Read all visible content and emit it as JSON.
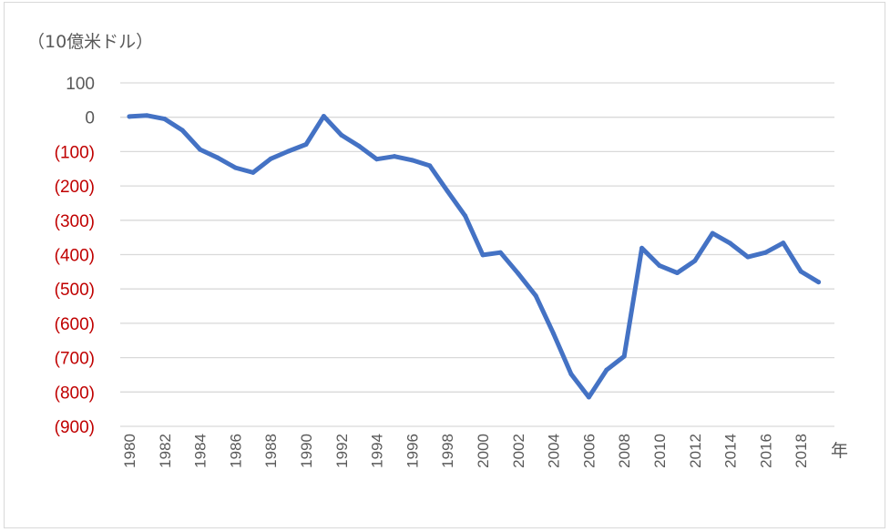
{
  "chart_data": {
    "type": "line",
    "title": "",
    "ylabel": "（10億米ドル）",
    "xlabel": "年",
    "ylim": [
      -900,
      100
    ],
    "yticks": [
      100,
      0,
      -100,
      -200,
      -300,
      -400,
      -500,
      -600,
      -700,
      -800,
      -900
    ],
    "ytick_labels": [
      "100",
      "0",
      "(100)",
      "(200)",
      "(300)",
      "(400)",
      "(500)",
      "(600)",
      "(700)",
      "(800)",
      "(900)"
    ],
    "xtick_labels": [
      "1980",
      "1982",
      "1984",
      "1986",
      "1988",
      "1990",
      "1992",
      "1994",
      "1996",
      "1998",
      "2000",
      "2002",
      "2004",
      "2006",
      "2008",
      "2010",
      "2012",
      "2014",
      "2016",
      "2018"
    ],
    "grid": true,
    "series": [
      {
        "x": [
          1980,
          1981,
          1982,
          1983,
          1984,
          1985,
          1986,
          1987,
          1988,
          1989,
          1990,
          1991,
          1992,
          1993,
          1994,
          1995,
          1996,
          1997,
          1998,
          1999,
          2000,
          2001,
          2002,
          2003,
          2004,
          2005,
          2006,
          2007,
          2008,
          2009,
          2010,
          2011,
          2012,
          2013,
          2014,
          2015,
          2016,
          2017,
          2018,
          2019
        ],
        "values": [
          2,
          5,
          -5,
          -38,
          -94,
          -118,
          -147,
          -161,
          -121,
          -99,
          -79,
          3,
          -52,
          -84,
          -122,
          -114,
          -125,
          -141,
          -215,
          -287,
          -401,
          -394,
          -455,
          -520,
          -630,
          -748,
          -815,
          -736,
          -696,
          -381,
          -432,
          -453,
          -418,
          -338,
          -367,
          -407,
          -394,
          -366,
          -449,
          -480
        ]
      }
    ],
    "colors": {
      "line": "#4472c4",
      "grid": "#d9d9d9",
      "positive_label": "#595959",
      "negative_label": "#c00000"
    }
  }
}
